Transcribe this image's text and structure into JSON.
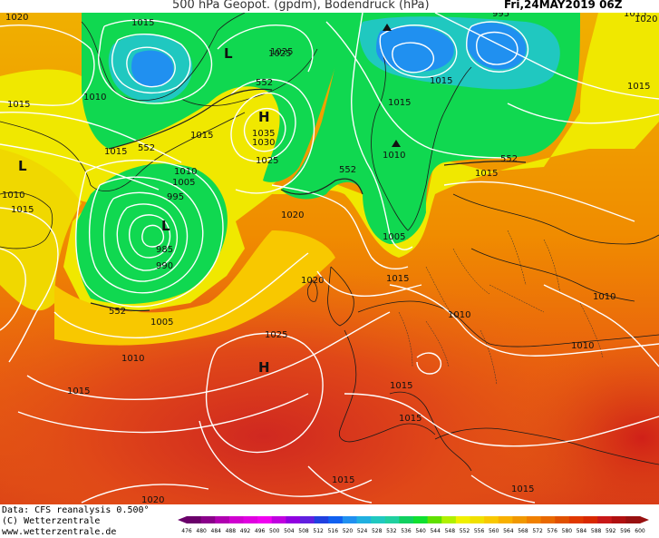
{
  "header": {
    "title": "500 hPa Geopot. (gpdm), Bodendruck (hPa)",
    "date": "Fri,24MAY2019 06Z"
  },
  "footer": {
    "data_source": "Data: CFS reanalysis 0.500°",
    "copyright": "(C) Wetterzentrale",
    "website": "www.wetterzentrale.de"
  },
  "legend": {
    "values": [
      "476",
      "480",
      "484",
      "488",
      "492",
      "496",
      "500",
      "504",
      "508",
      "512",
      "516",
      "520",
      "524",
      "528",
      "532",
      "536",
      "540",
      "544",
      "548",
      "552",
      "556",
      "560",
      "564",
      "568",
      "572",
      "576",
      "580",
      "584",
      "588",
      "592",
      "596",
      "600"
    ],
    "colors": [
      "#6a006a",
      "#8a008a",
      "#b000b0",
      "#d000d0",
      "#e000e0",
      "#f000f0",
      "#c000e0",
      "#9000e0",
      "#6020e0",
      "#2040e0",
      "#1060f0",
      "#2090f0",
      "#20b0e0",
      "#20c8c0",
      "#20d0a0",
      "#10d060",
      "#10e030",
      "#60e000",
      "#b0f000",
      "#f0f000",
      "#f0e000",
      "#f8c800",
      "#f8b000",
      "#f09800",
      "#f08000",
      "#e86800",
      "#e05000",
      "#e03800",
      "#d82800",
      "#c81818",
      "#b01010",
      "#981010"
    ]
  },
  "systems": [
    {
      "type": "L",
      "name": "low-greenland"
    },
    {
      "type": "L",
      "name": "low-atlantic"
    },
    {
      "type": "L",
      "name": "low-canada"
    },
    {
      "type": "H",
      "name": "high-labrador"
    },
    {
      "type": "H",
      "name": "high-azores"
    }
  ],
  "isobar_labels": [
    "1015",
    "1020",
    "1015",
    "1015",
    "1010",
    "1015",
    "1025",
    "1030",
    "1035",
    "1025",
    "1010",
    "1005",
    "995",
    "985",
    "990",
    "1020",
    "1005",
    "1010",
    "1015",
    "1020",
    "1025",
    "1015",
    "1015",
    "1010",
    "1005",
    "1015",
    "1010",
    "1015",
    "995",
    "1010",
    "1015",
    "1015",
    "1010",
    "1010",
    "1015",
    "1015",
    "1015",
    "1020",
    "1025",
    "1015",
    "1015",
    "1020"
  ],
  "geopot_labels": [
    "552",
    "552",
    "552",
    "552",
    "552",
    "552",
    "552"
  ]
}
